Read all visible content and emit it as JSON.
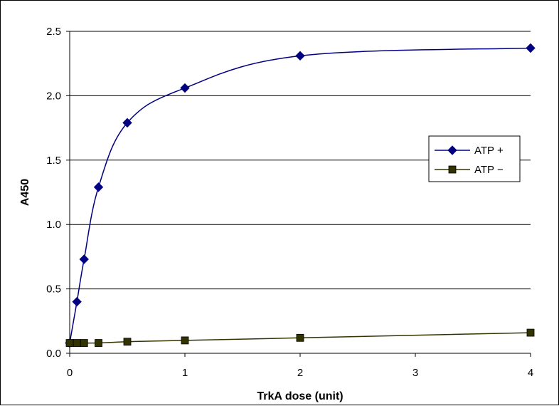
{
  "chart_data": {
    "type": "line",
    "title": "",
    "xlabel": "TrkA dose (unit)",
    "ylabel": "A450",
    "xlim": [
      0,
      4
    ],
    "ylim": [
      0,
      2.5
    ],
    "xticks": [
      0,
      1,
      2,
      3,
      4
    ],
    "xtick_labels": [
      "0",
      "1",
      "2",
      "3",
      "4"
    ],
    "yticks": [
      0,
      0.5,
      1.0,
      1.5,
      2.0,
      2.5
    ],
    "ytick_labels": [
      "0.0",
      "0.5",
      "1.0",
      "1.5",
      "2.0",
      "2.5"
    ],
    "grid": "horizontal",
    "legend_position": "right",
    "series": [
      {
        "name": "ATP +",
        "color": "#000080",
        "marker": "diamond",
        "x": [
          0,
          0.0625,
          0.125,
          0.25,
          0.5,
          1,
          2,
          4
        ],
        "y": [
          0.08,
          0.4,
          0.73,
          1.29,
          1.79,
          2.06,
          2.31,
          2.37
        ]
      },
      {
        "name": "ATP −",
        "color": "#333300",
        "marker": "square",
        "x": [
          0,
          0.0625,
          0.125,
          0.25,
          0.5,
          1,
          2,
          4
        ],
        "y": [
          0.08,
          0.08,
          0.08,
          0.08,
          0.09,
          0.1,
          0.12,
          0.16
        ]
      }
    ]
  }
}
